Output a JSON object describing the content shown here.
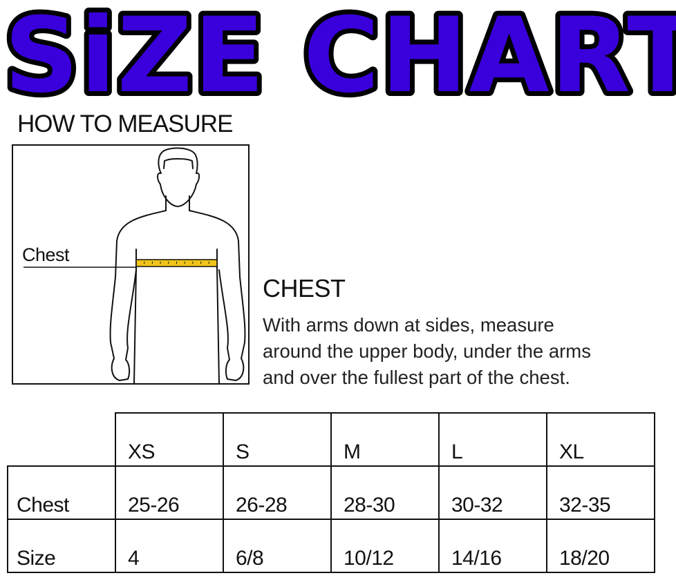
{
  "title": "SiZE CHART",
  "title_color": "#3a00dc",
  "how_to_measure": "HOW TO MEASURE",
  "figure": {
    "chest_label": "Chest",
    "tape_color": "#f2c418"
  },
  "measurement": {
    "heading": "CHEST",
    "description_lines": [
      "With arms down at sides, measure",
      "around the upper body, under the arms",
      "and over the fullest part of the chest."
    ]
  },
  "table": {
    "sizes": [
      "XS",
      "S",
      "M",
      "L",
      "XL"
    ],
    "rows": [
      {
        "label": "Chest",
        "values": [
          "25-26",
          "26-28",
          "28-30",
          "30-32",
          "32-35"
        ]
      },
      {
        "label": "Size",
        "values": [
          "4",
          "6/8",
          "10/12",
          "14/16",
          "18/20"
        ]
      }
    ]
  }
}
